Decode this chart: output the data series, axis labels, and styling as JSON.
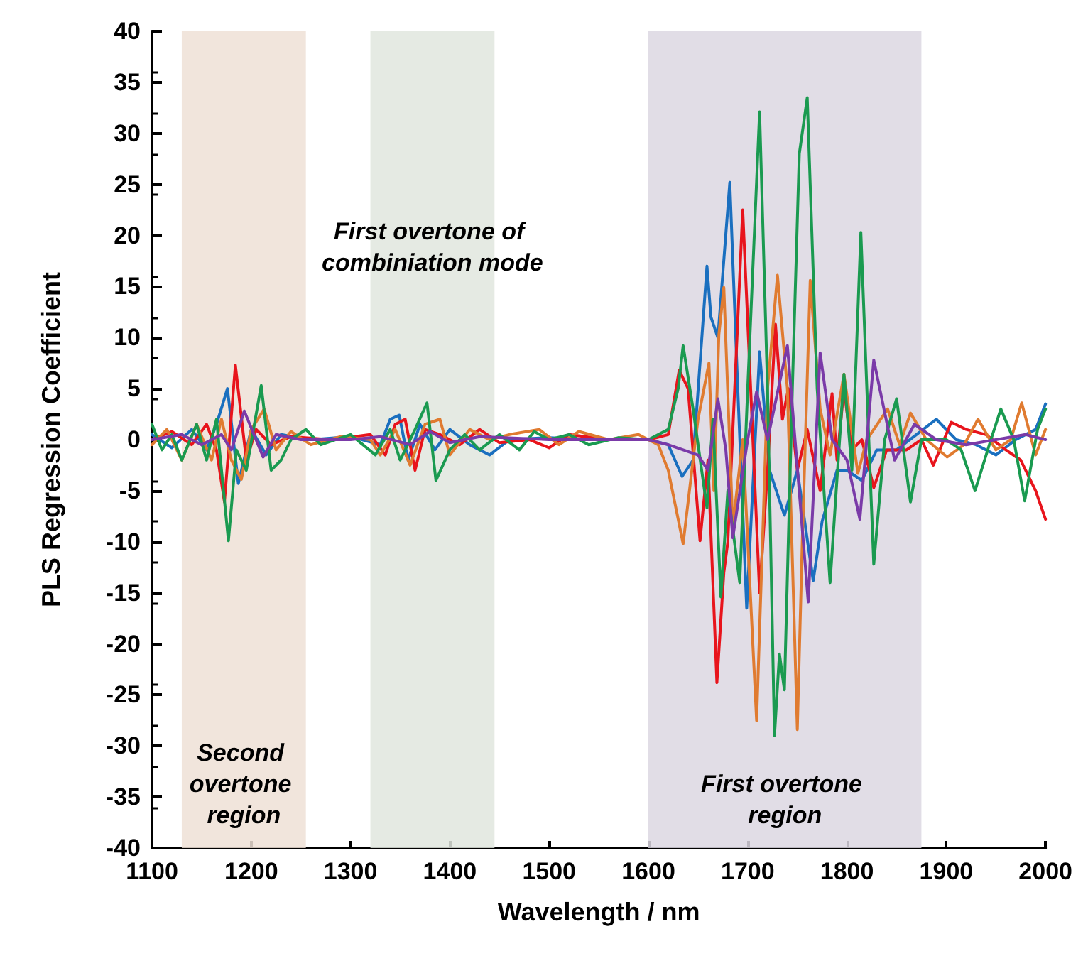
{
  "chart_data": {
    "type": "line",
    "xlabel": "Wavelength / nm",
    "ylabel": "PLS Regression Coefficient",
    "xlim": [
      1100,
      2000
    ],
    "xticks": [
      1100,
      1200,
      1300,
      1400,
      1500,
      1600,
      1700,
      1800,
      1900,
      2000
    ],
    "ylim": [
      -40,
      40
    ],
    "yticks": [
      -40,
      -35,
      -30,
      -25,
      -20,
      -15,
      -10,
      -5,
      0,
      5,
      10,
      15,
      20,
      25,
      30,
      35,
      40
    ],
    "grid": false,
    "marker": "none",
    "line_style": "solid",
    "bands": [
      {
        "axis": "x",
        "from": 1130,
        "to": 1255,
        "color": "#eee0d6",
        "label": "Second overtone region"
      },
      {
        "axis": "x",
        "from": 1320,
        "to": 1445,
        "color": "#e0e6de",
        "label": "First overtone of combiniation mode"
      },
      {
        "axis": "x",
        "from": 1600,
        "to": 1875,
        "color": "#dcd7e2",
        "label": "First overtone region"
      }
    ],
    "series": [
      {
        "color": "#1a6fbf",
        "x": [
          1100,
          1120,
          1140,
          1155,
          1165,
          1176,
          1187,
          1200,
          1215,
          1230,
          1260,
          1300,
          1330,
          1340,
          1349,
          1358,
          1370,
          1385,
          1400,
          1420,
          1440,
          1460,
          1500,
          1550,
          1600,
          1620,
          1634,
          1645,
          1659,
          1663,
          1670,
          1682,
          1690,
          1699,
          1705,
          1712,
          1722,
          1737,
          1750,
          1766,
          1775,
          1790,
          1800,
          1815,
          1830,
          1850,
          1870,
          1890,
          1910,
          1930,
          1950,
          1970,
          1990,
          2000
        ],
        "values": [
          0.5,
          -0.8,
          1,
          -1,
          1.5,
          5,
          -4.3,
          1,
          -1.5,
          0.5,
          0,
          0.3,
          -0.5,
          2,
          2.4,
          -2,
          1.5,
          -1,
          1,
          -0.5,
          -1.5,
          0,
          0.2,
          0,
          0,
          -0.5,
          -3.6,
          -2,
          17,
          12,
          10,
          25.2,
          5,
          -16.5,
          -5,
          8.6,
          -3,
          -7.4,
          -3,
          -13.8,
          -8,
          -3,
          -3,
          -4,
          -1,
          -1,
          0.5,
          2,
          0,
          -0.5,
          -1.5,
          0,
          1,
          3.5
        ]
      },
      {
        "color": "#e8141c",
        "x": [
          1100,
          1120,
          1140,
          1155,
          1165,
          1173,
          1184,
          1195,
          1205,
          1220,
          1240,
          1280,
          1320,
          1335,
          1345,
          1355,
          1365,
          1375,
          1390,
          1410,
          1430,
          1450,
          1480,
          1500,
          1520,
          1560,
          1600,
          1620,
          1631,
          1640,
          1652,
          1660,
          1669,
          1676,
          1680,
          1695,
          1703,
          1712,
          1720,
          1728,
          1735,
          1741,
          1750,
          1760,
          1773,
          1785,
          1790,
          1797,
          1805,
          1815,
          1827,
          1840,
          1860,
          1875,
          1887,
          1905,
          1920,
          1940,
          1960,
          1975,
          1990,
          2000
        ],
        "values": [
          0,
          0.8,
          -0.5,
          1.5,
          -1,
          -6.1,
          7.3,
          -2,
          1,
          -0.5,
          0.3,
          0,
          0.5,
          -1.5,
          1.5,
          2,
          -3,
          1,
          0.5,
          -0.5,
          1,
          -0.3,
          0,
          -0.8,
          0.5,
          0,
          0,
          0.5,
          6.8,
          5,
          -9.9,
          -2,
          -23.8,
          -13,
          -10,
          22.5,
          5,
          -15,
          -3,
          11.3,
          2,
          5,
          -3,
          1,
          -5,
          4.5,
          -2,
          5,
          -1,
          0,
          -4.7,
          -1,
          -1,
          0,
          -2.5,
          1.7,
          1,
          0.5,
          -1,
          -2,
          -5,
          -7.8
        ]
      },
      {
        "color": "#e07b30",
        "x": [
          1100,
          1115,
          1130,
          1145,
          1160,
          1170,
          1180,
          1190,
          1200,
          1213,
          1225,
          1240,
          1260,
          1290,
          1320,
          1330,
          1345,
          1360,
          1375,
          1390,
          1400,
          1420,
          1440,
          1460,
          1490,
          1510,
          1530,
          1560,
          1590,
          1610,
          1620,
          1635,
          1645,
          1650,
          1661,
          1666,
          1671,
          1676,
          1685,
          1695,
          1709,
          1720,
          1730,
          1740,
          1750,
          1755,
          1763,
          1773,
          1783,
          1797,
          1811,
          1820,
          1841,
          1853,
          1864,
          1880,
          1901,
          1918,
          1932,
          1950,
          1965,
          1976,
          1990,
          2000
        ],
        "values": [
          -0.5,
          1,
          -2,
          1.5,
          -2,
          2,
          -2,
          -3.9,
          1,
          3,
          -1,
          0.8,
          -0.5,
          0.3,
          0,
          -1.5,
          1,
          -2.5,
          1.5,
          2,
          -1.5,
          1,
          0,
          0.5,
          1,
          -0.5,
          0.8,
          0,
          0.5,
          -0.5,
          -3,
          -10.2,
          -2,
          2,
          7.5,
          -5,
          10.3,
          14.9,
          -8.5,
          0,
          -27.5,
          5,
          16.1,
          5,
          -28.4,
          -10,
          15.6,
          3,
          -1.5,
          6.4,
          -3.3,
          0,
          3,
          -0.5,
          2.6,
          0,
          -1.7,
          -0.5,
          2,
          -1,
          0,
          3.6,
          -1.5,
          1
        ]
      },
      {
        "color": "#1a9a50",
        "x": [
          1100,
          1110,
          1120,
          1130,
          1145,
          1155,
          1165,
          1177,
          1185,
          1195,
          1210,
          1220,
          1230,
          1240,
          1255,
          1270,
          1300,
          1325,
          1340,
          1350,
          1365,
          1377,
          1386,
          1400,
          1415,
          1430,
          1450,
          1470,
          1485,
          1500,
          1520,
          1540,
          1570,
          1600,
          1620,
          1630,
          1635,
          1645,
          1659,
          1665,
          1673,
          1680,
          1692,
          1700,
          1712,
          1720,
          1727,
          1732,
          1737,
          1745,
          1752,
          1760,
          1770,
          1783,
          1797,
          1805,
          1814,
          1822,
          1827,
          1838,
          1850,
          1864,
          1875,
          1900,
          1915,
          1929,
          1945,
          1955,
          1968,
          1979,
          1992,
          2000
        ],
        "values": [
          1.5,
          -1,
          0.5,
          -2,
          1.5,
          -2,
          2,
          -9.9,
          -1,
          -3,
          5.3,
          -3,
          -2,
          0,
          1,
          -0.5,
          0.5,
          -1.5,
          1,
          -2,
          1,
          3.6,
          -4,
          -1,
          0.5,
          -1,
          0.5,
          -1,
          0.8,
          0,
          0.5,
          -0.5,
          0.2,
          0,
          1,
          5,
          9.2,
          3,
          -6.7,
          2,
          -15.4,
          -5,
          -14,
          5,
          32.1,
          5,
          -29,
          -21,
          -24.5,
          5,
          28,
          33.5,
          5,
          -14,
          6.4,
          -3,
          20.3,
          0,
          -12.2,
          0,
          4,
          -6.1,
          0,
          0,
          -1,
          -5,
          0,
          3,
          0,
          -6,
          1,
          3
        ]
      },
      {
        "color": "#7a3aa8",
        "x": [
          1100,
          1130,
          1150,
          1170,
          1180,
          1193,
          1212,
          1225,
          1250,
          1300,
          1330,
          1360,
          1380,
          1400,
          1430,
          1500,
          1600,
          1620,
          1650,
          1660,
          1670,
          1678,
          1685,
          1700,
          1709,
          1720,
          1740,
          1761,
          1773,
          1785,
          1800,
          1813,
          1827,
          1848,
          1868,
          1890,
          1920,
          1950,
          1980,
          2000
        ],
        "values": [
          0,
          0.5,
          -0.5,
          0.5,
          -1,
          2.8,
          -1.7,
          0.5,
          0,
          0,
          0.3,
          -0.5,
          0.8,
          -0.3,
          0.3,
          0,
          0,
          -0.5,
          -1.5,
          -3,
          4,
          -1,
          -9.6,
          0,
          4.7,
          0,
          9.2,
          -15.9,
          8.5,
          0,
          -2,
          -7.8,
          7.8,
          -2,
          1.5,
          0,
          -0.5,
          0,
          0.5,
          0
        ]
      }
    ]
  }
}
